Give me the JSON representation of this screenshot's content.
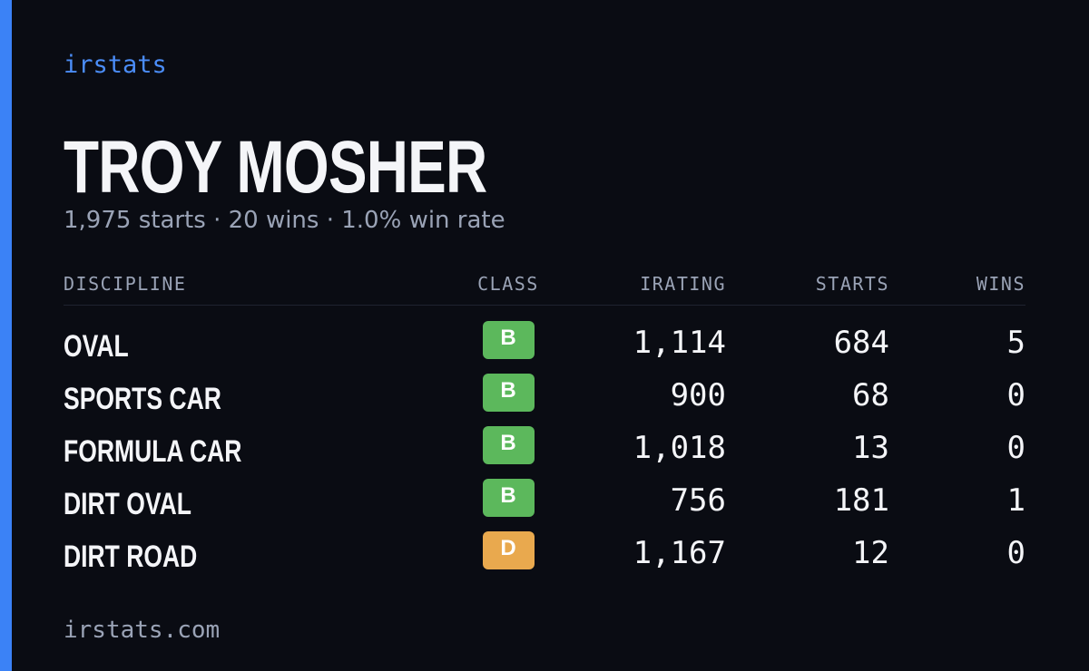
{
  "brand": "irstats",
  "driver_name": "TROY MOSHER",
  "summary": "1,975 starts · 20 wins · 1.0% win rate",
  "table": {
    "headers": [
      "DISCIPLINE",
      "CLASS",
      "IRATING",
      "STARTS",
      "WINS"
    ],
    "rows": [
      {
        "discipline": "OVAL",
        "class": "B",
        "class_color": "#5cb85c",
        "irating": "1,114",
        "starts": "684",
        "wins": "5"
      },
      {
        "discipline": "SPORTS CAR",
        "class": "B",
        "class_color": "#5cb85c",
        "irating": "900",
        "starts": "68",
        "wins": "0"
      },
      {
        "discipline": "FORMULA CAR",
        "class": "B",
        "class_color": "#5cb85c",
        "irating": "1,018",
        "starts": "13",
        "wins": "0"
      },
      {
        "discipline": "DIRT OVAL",
        "class": "B",
        "class_color": "#5cb85c",
        "irating": "756",
        "starts": "181",
        "wins": "1"
      },
      {
        "discipline": "DIRT ROAD",
        "class": "D",
        "class_color": "#e9a94e",
        "irating": "1,167",
        "starts": "12",
        "wins": "0"
      }
    ]
  },
  "footer": "irstats.com"
}
